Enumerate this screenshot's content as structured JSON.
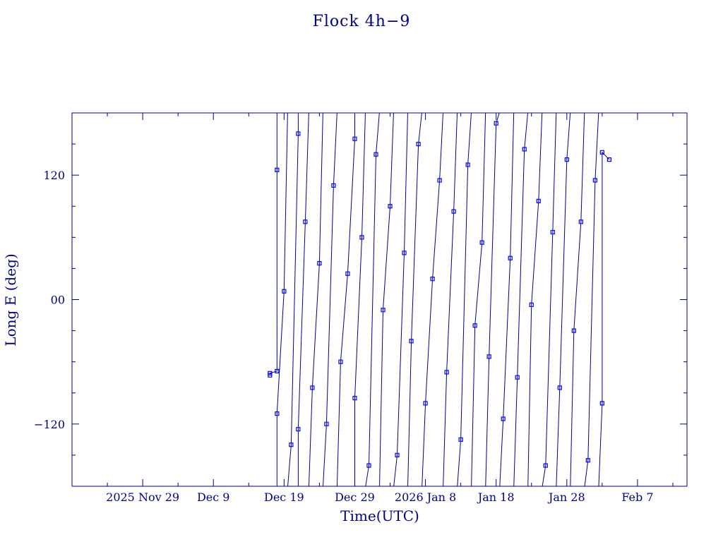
{
  "chart_data": {
    "type": "line",
    "title": "Flock 4h−9",
    "xlabel": "Time(UTC)",
    "ylabel": "Long E (deg)",
    "x_range": [
      "2025-11-19",
      "2026-02-14"
    ],
    "ylim": [
      -180,
      180
    ],
    "x_ticks": [
      {
        "date": "2025-11-29",
        "label": "2025 Nov 29"
      },
      {
        "date": "2025-12-09",
        "label": "Dec  9"
      },
      {
        "date": "2025-12-19",
        "label": "Dec 19"
      },
      {
        "date": "2025-12-29",
        "label": "Dec 29"
      },
      {
        "date": "2026-01-08",
        "label": "2026 Jan  8"
      },
      {
        "date": "2026-01-18",
        "label": "Jan 18"
      },
      {
        "date": "2026-01-28",
        "label": "Jan 28"
      },
      {
        "date": "2026-02-07",
        "label": "Feb  7"
      }
    ],
    "y_ticks": [
      {
        "value": 120,
        "label": "120"
      },
      {
        "value": 0,
        "label": "00"
      },
      {
        "value": -120,
        "label": "−120"
      }
    ],
    "grid": false,
    "marker": "square",
    "colors": {
      "line": "#00008b",
      "marker": "#0000ff"
    },
    "series": [
      {
        "x": [
          "2025-12-17",
          "2025-12-17",
          "2025-12-18",
          "2025-12-18",
          "2025-12-18",
          "2025-12-19",
          "2025-12-20",
          "2025-12-21",
          "2025-12-21",
          "2025-12-22",
          "2025-12-23",
          "2025-12-24",
          "2025-12-25",
          "2025-12-26",
          "2025-12-27",
          "2025-12-28",
          "2025-12-29",
          "2025-12-29",
          "2025-12-30",
          "2025-12-31",
          "2026-01-01",
          "2026-01-02",
          "2026-01-03",
          "2026-01-04",
          "2026-01-05",
          "2026-01-06",
          "2026-01-07",
          "2026-01-08",
          "2026-01-09",
          "2026-01-10",
          "2026-01-11",
          "2026-01-12",
          "2026-01-13",
          "2026-01-14",
          "2026-01-15",
          "2026-01-16",
          "2026-01-17",
          "2026-01-18",
          "2026-01-19",
          "2026-01-20",
          "2026-01-21",
          "2026-01-22",
          "2026-01-23",
          "2026-01-24",
          "2026-01-25",
          "2026-01-26",
          "2026-01-27",
          "2026-01-28",
          "2026-01-29",
          "2026-01-30",
          "2026-01-31",
          "2026-02-01",
          "2026-02-02",
          "2026-02-02",
          "2026-02-03"
        ],
        "y": [
          -73,
          -71,
          -69,
          125,
          -110,
          8,
          -140,
          160,
          -125,
          75,
          -85,
          35,
          -120,
          110,
          -60,
          25,
          155,
          -95,
          60,
          -160,
          140,
          -10,
          90,
          -150,
          45,
          -40,
          150,
          -100,
          20,
          115,
          -70,
          85,
          -135,
          130,
          -25,
          55,
          -55,
          170,
          -115,
          40,
          -75,
          145,
          -5,
          95,
          -160,
          65,
          -85,
          135,
          -30,
          75,
          -155,
          115,
          -100,
          142,
          135
        ]
      }
    ]
  }
}
